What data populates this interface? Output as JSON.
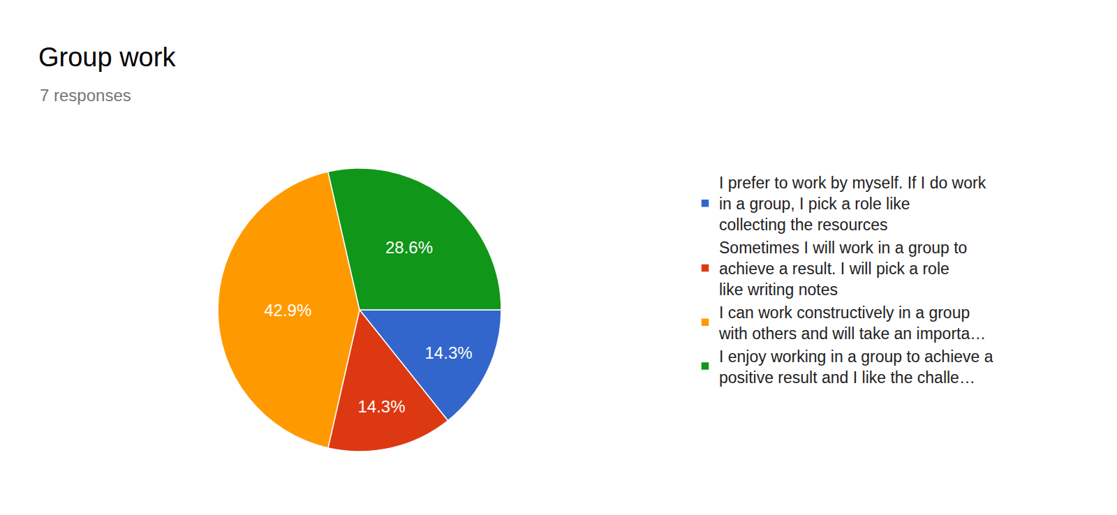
{
  "chart_data": {
    "type": "pie",
    "title": "Group work",
    "subtitle": "7 responses",
    "categories": [
      "I prefer to work by myself. If I do work in a group, I pick a role like collecting the resources",
      "Sometimes I will work in a group to achieve a result. I will pick a role like writing notes",
      "I can work constructively in a group with others and will take an importa…",
      "I enjoy working in a group to achieve a positive result and I like the challe…"
    ],
    "values": [
      14.3,
      14.3,
      42.9,
      28.6
    ],
    "value_labels": [
      "14.3%",
      "14.3%",
      "42.9%",
      "28.6%"
    ],
    "colors": [
      "#3366cc",
      "#dc3912",
      "#ff9900",
      "#109618"
    ],
    "data_labels": true,
    "legend": "right"
  }
}
